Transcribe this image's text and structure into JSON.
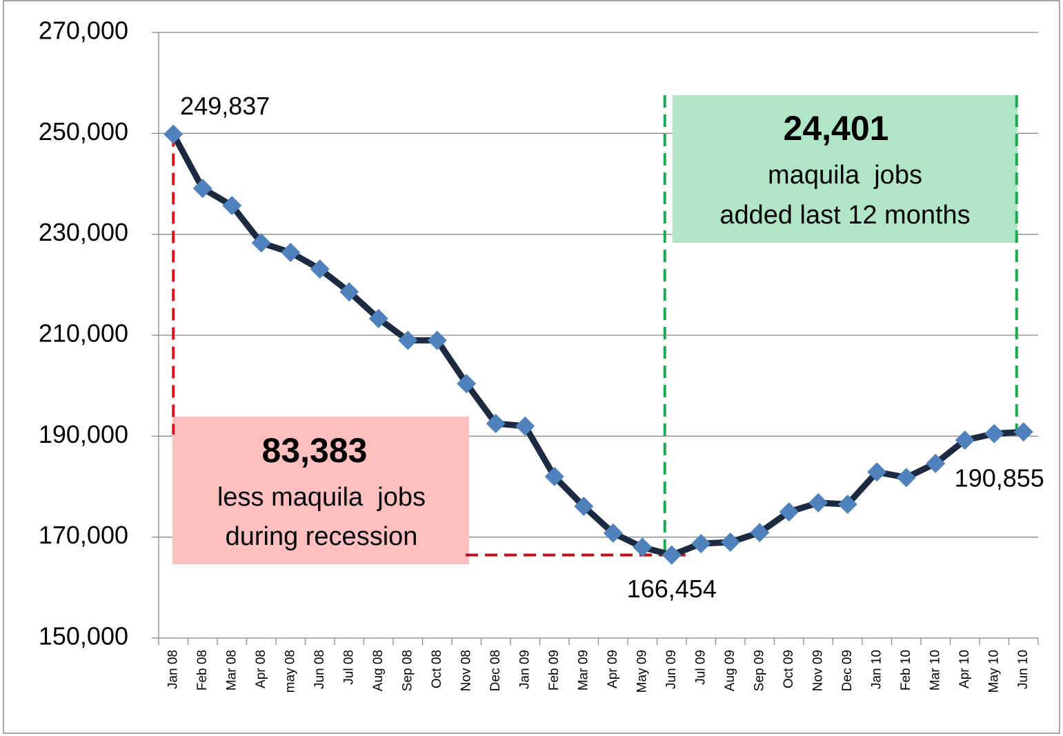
{
  "chart_data": {
    "type": "line",
    "categories": [
      "Jan 08",
      "Feb 08",
      "Mar 08",
      "Apr 08",
      "may 08",
      "Jun 08",
      "Jul 08",
      "Aug 08",
      "Sep 08",
      "Oct 08",
      "Nov 08",
      "Dec 08",
      "Jan 09",
      "Feb 09",
      "Mar 09",
      "Apr 09",
      "May 09",
      "Jun 09",
      "Jul 09",
      "Aug 09",
      "Sep 09",
      "Oct 09",
      "Nov 09",
      "Dec 09",
      "Jan 10",
      "Feb 10",
      "Mar 10",
      "Apr 10",
      "May 10",
      "Jun 10"
    ],
    "series": [
      {
        "color": "#1b2a41",
        "marker_color": "#4f81bd",
        "values": [
          249837,
          239100,
          235700,
          228300,
          226400,
          223100,
          218600,
          213300,
          209000,
          209000,
          200400,
          192500,
          192000,
          182000,
          176100,
          170800,
          168000,
          166454,
          168700,
          169000,
          170900,
          175000,
          176800,
          176500,
          182900,
          181800,
          184600,
          189200,
          190500,
          190855
        ],
        "value_labels": [
          "249,837",
          null,
          null,
          null,
          null,
          null,
          null,
          null,
          null,
          null,
          null,
          null,
          null,
          null,
          null,
          null,
          null,
          "166,454",
          null,
          null,
          null,
          null,
          null,
          null,
          null,
          null,
          null,
          null,
          null,
          "190,855"
        ]
      }
    ],
    "ylim": [
      150000,
      270000
    ],
    "yticks": [
      {
        "value": 150000,
        "label": "150,000"
      },
      {
        "value": 170000,
        "label": "170,000"
      },
      {
        "value": 190000,
        "label": "190,000"
      },
      {
        "value": 210000,
        "label": "210,000"
      },
      {
        "value": 230000,
        "label": "230,000"
      },
      {
        "value": 250000,
        "label": "250,000"
      },
      {
        "value": 270000,
        "label": "270,000"
      }
    ],
    "grid": true,
    "annotations": [
      {
        "color": "#ffbfbf",
        "line_color": "#e0101a",
        "value": "83,383",
        "lines": [
          "less maquila  jobs",
          "during recession"
        ]
      },
      {
        "color": "#b0e5c6",
        "line_color": "#1aaa50",
        "value": "24,401",
        "lines": [
          "maquila  jobs",
          "added last 12 months"
        ]
      }
    ]
  }
}
